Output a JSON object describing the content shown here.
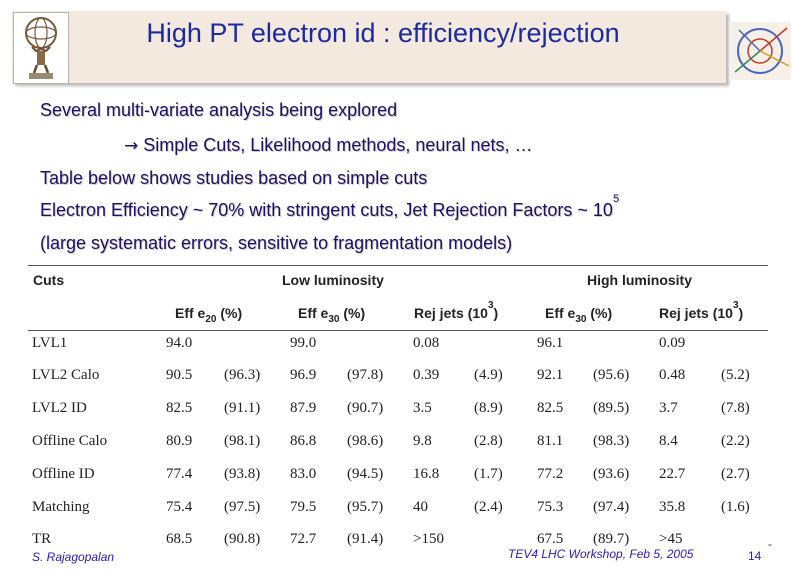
{
  "slide": {
    "title": "High PT electron id : efficiency/rejection",
    "lines": {
      "l1": "Several multi-variate analysis being explored",
      "l2_arrow": "→",
      "l2_text": "Simple Cuts, Likelihood methods, neural nets, …",
      "l3": "Table below shows studies based on simple cuts",
      "l4_text": "Electron Efficiency ~ 70% with stringent cuts, Jet Rejection Factors ~ 10",
      "l4_exp": "5",
      "l5": "(large systematic errors, sensitive to fragmentation models)"
    }
  },
  "table": {
    "group_headers": {
      "cuts": "Cuts",
      "low": "Low luminosity",
      "high": "High luminosity"
    },
    "sub_headers": {
      "eff20_pre": "Eff e",
      "eff20_sub": "20",
      "eff20_post": " (%)",
      "eff30_pre": "Eff e",
      "eff30_sub": "30",
      "eff30_post": " (%)",
      "rej_pre": "Rej jets (10",
      "rej_sup": "3",
      "rej_post": ")",
      "heff30_pre": "Eff e",
      "heff30_sub": "30",
      "heff30_post": " (%)",
      "hrej_pre": "Rej jets (10",
      "hrej_sup": "3",
      "hrej_post": ")"
    },
    "rows": [
      {
        "label": "LVL1",
        "c": [
          "94.0",
          "",
          "99.0",
          "",
          "0.08",
          "",
          "96.1",
          "",
          "0.09",
          ""
        ]
      },
      {
        "label": "LVL2 Calo",
        "c": [
          "90.5",
          "(96.3)",
          "96.9",
          "(97.8)",
          "0.39",
          "(4.9)",
          "92.1",
          "(95.6)",
          "0.48",
          "(5.2)"
        ]
      },
      {
        "label": "LVL2 ID",
        "c": [
          "82.5",
          "(91.1)",
          "87.9",
          "(90.7)",
          "3.5",
          "(8.9)",
          "82.5",
          "(89.5)",
          "3.7",
          "(7.8)"
        ]
      },
      {
        "label": "Offline Calo",
        "c": [
          "80.9",
          "(98.1)",
          "86.8",
          "(98.6)",
          "9.8",
          "(2.8)",
          "81.1",
          "(98.3)",
          "8.4",
          "(2.2)"
        ]
      },
      {
        "label": "Offline ID",
        "c": [
          "77.4",
          "(93.8)",
          "83.0",
          "(94.5)",
          "16.8",
          "(1.7)",
          "77.2",
          "(93.6)",
          "22.7",
          "(2.7)"
        ]
      },
      {
        "label": "Matching",
        "c": [
          "75.4",
          "(97.5)",
          "79.5",
          "(95.7)",
          "40",
          "(2.4)",
          "75.3",
          "(97.4)",
          "35.8",
          "(1.6)"
        ]
      },
      {
        "label": "TR",
        "c": [
          "68.5",
          "(90.8)",
          "72.7",
          "(91.4)",
          ">150",
          "",
          "67.5",
          "(89.7)",
          ">45",
          ""
        ]
      }
    ]
  },
  "footer": {
    "author": "S. Rajagopalan",
    "event": "TEV4 LHC Workshop, Feb 5, 2005",
    "page": "14",
    "dash": "-"
  },
  "logos": {
    "left": "atlas-figure-logo",
    "right": "collision-event-logo"
  }
}
